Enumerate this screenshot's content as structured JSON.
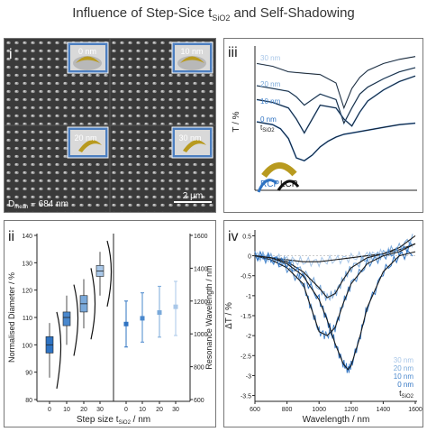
{
  "title": {
    "prefix": "Influence of Step-Sice t",
    "sub": "SiO2",
    "suffix": " and Self-Shadowing"
  },
  "panel_i": {
    "label": "i",
    "insets": [
      "0 nm",
      "10 nm",
      "20 nm",
      "30 nm"
    ],
    "dmean_prefix": "D",
    "dmean_sub": "mean",
    "dmean_value": " ~ 684 nm",
    "scalebar": "2 μm"
  },
  "panel_ii": {
    "label": "ii"
  },
  "panel_iii": {
    "label": "iii"
  },
  "panel_iv": {
    "label": "iv"
  },
  "colors": {
    "dark": "#1a1a1a",
    "c0": "#2f73c2",
    "c10": "#4a88cd",
    "c20": "#7aa9da",
    "c30": "#a9c7e8",
    "gold": "#b89a1f"
  },
  "chart_data": [
    {
      "id": "transmission",
      "type": "line",
      "ylabel": "T / %",
      "annotation_labels": [
        "30 nm",
        "20 nm",
        "10 nm",
        "0 nm",
        "t",
        "SiO2"
      ],
      "inset_labels": [
        "RCP",
        "LCP"
      ],
      "series": [
        {
          "name": "30 nm",
          "x": [
            600,
            700,
            800,
            900,
            1000,
            1100,
            1150,
            1200,
            1250,
            1300,
            1400,
            1500,
            1600
          ],
          "y": [
            0.9,
            0.88,
            0.84,
            0.83,
            0.82,
            0.76,
            0.58,
            0.72,
            0.8,
            0.85,
            0.9,
            0.93,
            0.95
          ]
        },
        {
          "name": "20 nm",
          "x": [
            600,
            700,
            800,
            850,
            900,
            950,
            1000,
            1100,
            1150,
            1200,
            1250,
            1300,
            1400,
            1500,
            1600
          ],
          "y": [
            0.74,
            0.72,
            0.7,
            0.66,
            0.6,
            0.64,
            0.68,
            0.64,
            0.47,
            0.58,
            0.68,
            0.73,
            0.79,
            0.84,
            0.87
          ]
        },
        {
          "name": "10 nm",
          "x": [
            600,
            700,
            800,
            850,
            900,
            950,
            1000,
            1100,
            1150,
            1200,
            1250,
            1300,
            1400,
            1500,
            1600
          ],
          "y": [
            0.64,
            0.62,
            0.58,
            0.5,
            0.4,
            0.5,
            0.6,
            0.58,
            0.5,
            0.45,
            0.55,
            0.63,
            0.71,
            0.77,
            0.81
          ]
        },
        {
          "name": "0 nm",
          "x": [
            600,
            700,
            750,
            800,
            850,
            900,
            950,
            1000,
            1050,
            1100,
            1150,
            1200,
            1300,
            1400,
            1500,
            1600
          ],
          "y": [
            0.48,
            0.46,
            0.43,
            0.36,
            0.22,
            0.2,
            0.24,
            0.3,
            0.34,
            0.37,
            0.39,
            0.4,
            0.42,
            0.44,
            0.46,
            0.47
          ]
        }
      ]
    },
    {
      "id": "diameter",
      "type": "scatter",
      "xlabel_prefix": "Step size t",
      "xlabel_sub": "SiO2",
      "xlabel_suffix": " / nm",
      "ylabel_left": "Normalised Diameter / %",
      "ylabel_right": "Resonance Wavelength / nm",
      "categories": [
        "0",
        "10",
        "20",
        "30"
      ],
      "yticks_left": [
        "80",
        "90",
        "100",
        "110",
        "120",
        "130",
        "140"
      ],
      "yticks_right": [
        "600",
        "800",
        "1000",
        "1200",
        "1400",
        "1600"
      ],
      "ylim_left": [
        80,
        140
      ],
      "ylim_right": [
        600,
        1600
      ],
      "boxes": [
        {
          "name": "0 nm",
          "q1": 97,
          "median": 100,
          "q3": 103,
          "whisker_low": 88,
          "whisker_high": 108
        },
        {
          "name": "10 nm",
          "q1": 107,
          "median": 110,
          "q3": 112,
          "whisker_low": 100,
          "whisker_high": 118
        },
        {
          "name": "20 nm",
          "q1": 112,
          "median": 115,
          "q3": 118,
          "whisker_low": 106,
          "whisker_high": 124
        },
        {
          "name": "30 nm",
          "q1": 125,
          "median": 127,
          "q3": 129,
          "whisker_low": 118,
          "whisker_high": 134
        }
      ],
      "resonance": [
        {
          "name": "0 nm",
          "value": 1060,
          "err_low": 920,
          "err_high": 1200
        },
        {
          "name": "10 nm",
          "value": 1095,
          "err_low": 950,
          "err_high": 1250
        },
        {
          "name": "20 nm",
          "value": 1130,
          "err_low": 980,
          "err_high": 1290
        },
        {
          "name": "30 nm",
          "value": 1165,
          "err_low": 990,
          "err_high": 1320
        }
      ]
    },
    {
      "id": "delta_t",
      "type": "line",
      "xlabel": "Wavelength / nm",
      "ylabel": "ΔT / %",
      "xticks": [
        "600",
        "800",
        "1000",
        "1200",
        "1400",
        "1600"
      ],
      "yticks": [
        "0.5",
        "0",
        "-0.5",
        "-1",
        "-1.5",
        "-2",
        "-2.5",
        "-3",
        "-3.5"
      ],
      "xlim": [
        600,
        1600
      ],
      "ylim": [
        -3.6,
        0.6
      ],
      "legend": [
        "30 nm",
        "20 nm",
        "10 nm",
        "0 nm",
        "t",
        "SiO2"
      ],
      "series": [
        {
          "name": "30 nm",
          "x": [
            600,
            700,
            800,
            900,
            1000,
            1100,
            1200,
            1300,
            1400,
            1500,
            1600
          ],
          "y": [
            0.0,
            -0.05,
            -0.1,
            -0.15,
            -0.15,
            -0.1,
            -0.05,
            0.0,
            0.05,
            0.15,
            0.3
          ]
        },
        {
          "name": "20 nm",
          "x": [
            600,
            700,
            800,
            900,
            1000,
            1050,
            1100,
            1150,
            1200,
            1300,
            1400,
            1500,
            1600
          ],
          "y": [
            0.0,
            -0.05,
            -0.15,
            -0.4,
            -0.8,
            -1.05,
            -0.95,
            -0.6,
            -0.3,
            -0.05,
            0.05,
            0.2,
            0.5
          ]
        },
        {
          "name": "10 nm",
          "x": [
            600,
            700,
            800,
            900,
            950,
            1000,
            1050,
            1100,
            1150,
            1200,
            1300,
            1400,
            1500,
            1600
          ],
          "y": [
            0.0,
            -0.1,
            -0.3,
            -0.7,
            -1.3,
            -1.9,
            -2.0,
            -1.8,
            -1.2,
            -0.7,
            -0.2,
            0.0,
            0.1,
            0.3
          ]
        },
        {
          "name": "0 nm",
          "x": [
            600,
            700,
            800,
            900,
            1000,
            1050,
            1100,
            1150,
            1180,
            1200,
            1250,
            1300,
            1400,
            1500,
            1600
          ],
          "y": [
            0.0,
            -0.05,
            -0.2,
            -0.5,
            -1.1,
            -1.6,
            -2.2,
            -2.7,
            -2.85,
            -2.75,
            -2.1,
            -1.3,
            -0.4,
            0.0,
            0.1
          ]
        }
      ]
    }
  ]
}
